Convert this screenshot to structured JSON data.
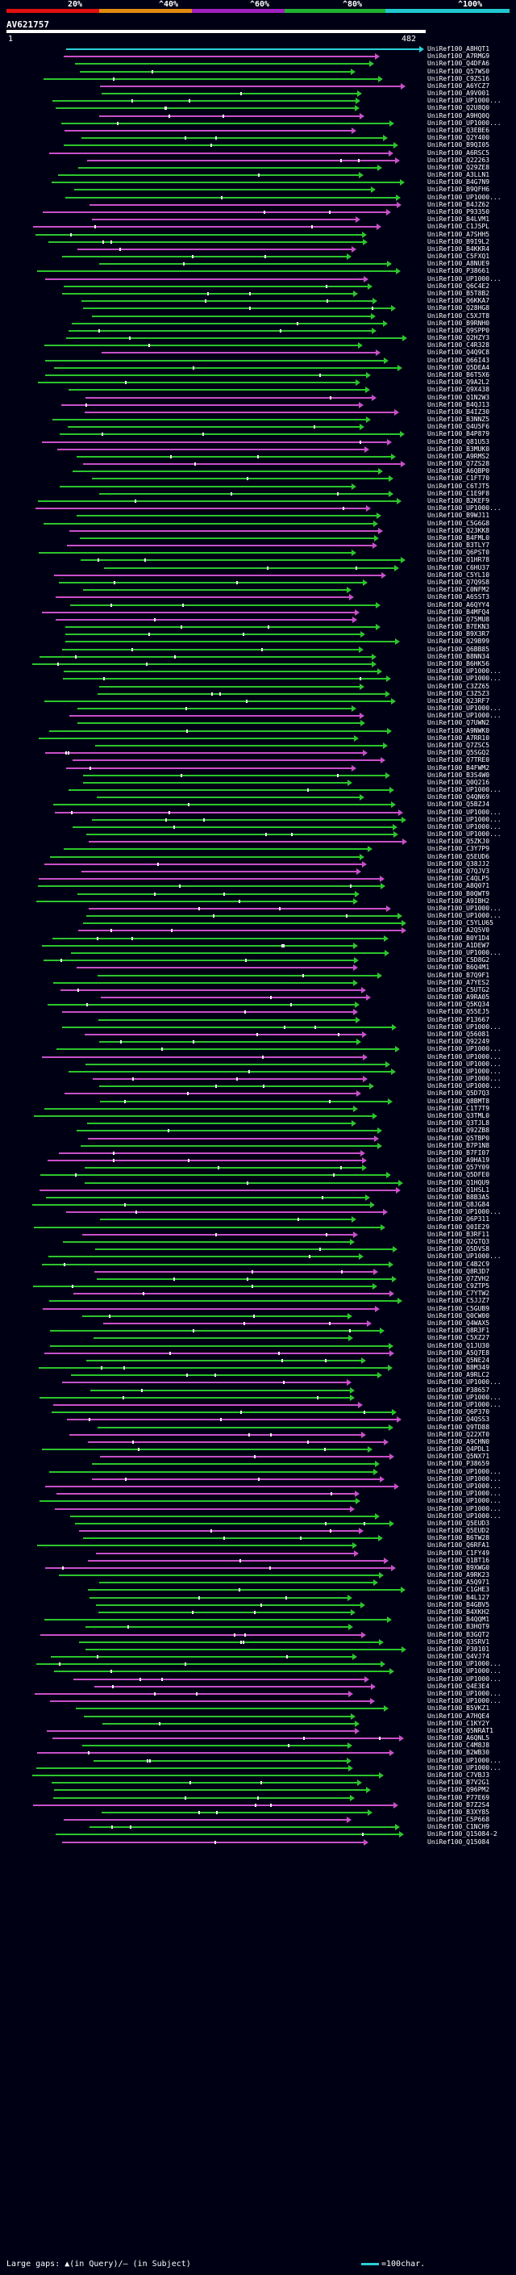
{
  "scale": {
    "labels": [
      "20%",
      "^40%",
      "^60%",
      "^80%",
      "^100%"
    ],
    "colors": [
      "#e01010",
      "#e08a10",
      "#a020c0",
      "#20b030",
      "#20c8d0"
    ]
  },
  "query": {
    "name": "AV621757",
    "start": "1",
    "end": "482"
  },
  "hit_colors": {
    "green": "#2cc52c",
    "magenta": "#c850c8",
    "cyan": "#2ad0d8"
  },
  "hits": [
    "UniRef100_A8HQT1",
    "UniRef100_A7RMG9",
    "UniRef100_Q4DFA6",
    "UniRef100_Q57WS0",
    "UniRef100_C9ZS16",
    "UniRef100_A6YCZ7",
    "UniRef100_A9V001",
    "UniRef100_UP1000...",
    "UniRef100_Q2U8Q0",
    "UniRef100_A9HQ0Q",
    "UniRef100_UP1000...",
    "UniRef100_Q3EBE6",
    "UniRef100_Q2Y400",
    "UniRef100_B9QI05",
    "UniRef100_A6RSC5",
    "UniRef100_Q22263",
    "UniRef100_Q29ZE8",
    "UniRef100_A3LLN1",
    "UniRef100_B4G7N9",
    "UniRef100_B9QFH6",
    "UniRef100_UP1000...",
    "UniRef100_B4JZ62",
    "UniRef100_P93350",
    "UniRef100_B4LVM1",
    "UniRef100_C1J5PL",
    "UniRef100_A7SHH5",
    "UniRef100_B9I9L2",
    "UniRef100_B4KKR4",
    "UniRef100_C5FXQ1",
    "UniRef100_A8NUE9",
    "UniRef100_P38661",
    "UniRef100_UP1000...",
    "UniRef100_Q6C4E2",
    "UniRef100_B5T8B2",
    "UniRef100_Q6KKA7",
    "UniRef100_Q28HG8",
    "UniRef100_C5XJT8",
    "UniRef100_B9RNH0",
    "UniRef100_Q9SPP0",
    "UniRef100_Q2HZY3",
    "UniRef100_C4R328",
    "UniRef100_Q4Q9C8",
    "UniRef100_Q66I43",
    "UniRef100_Q5DEA4",
    "UniRef100_B6T5X6",
    "UniRef100_Q9A2L2",
    "UniRef100_Q9X438",
    "UniRef100_Q1N2W3",
    "UniRef100_B4QJ13",
    "UniRef100_B4IZ30",
    "UniRef100_B3NNZ5",
    "UniRef100_Q4U5F6",
    "UniRef100_B4P879",
    "UniRef100_Q81U53",
    "UniRef100_B3MUK0",
    "UniRef100_A9RMS2",
    "UniRef100_Q7ZS28",
    "UniRef100_A6QBP0",
    "UniRef100_C1FT70",
    "UniRef100_C6TJT5",
    "UniRef100_C1E9F8",
    "UniRef100_B2KEF9",
    "UniRef100_UP1000...",
    "UniRef100_B9WJ11",
    "UniRef100_C5G6G8",
    "UniRef100_Q23KK8",
    "UniRef100_B4FML0",
    "UniRef100_B3TLY7",
    "UniRef100_Q6PST0",
    "UniRef100_Q1HR78",
    "UniRef100_C6HU37",
    "UniRef100_C5YL10",
    "UniRef100_Q7Q9S8",
    "UniRef100_C0NFM2",
    "UniRef100_A6SST3",
    "UniRef100_A6QYY4",
    "UniRef100_B4MFQ4",
    "UniRef100_Q75MU8",
    "UniRef100_B7EKN3",
    "UniRef100_B9X3R7",
    "UniRef100_Q29B99",
    "UniRef100_Q6BB85",
    "UniRef100_B8NN34",
    "UniRef100_B6HK56",
    "UniRef100_UP1000...",
    "UniRef100_UP1000...",
    "UniRef100_C3ZZ65",
    "UniRef100_C3Z5Z3",
    "UniRef100_Q23RF7",
    "UniRef100_UP1000...",
    "UniRef100_UP1000...",
    "UniRef100_Q7UWN2",
    "UniRef100_A9NWK0",
    "UniRef100_A7RR10",
    "UniRef100_Q7ZSC5",
    "UniRef100_Q5SGQ2",
    "UniRef100_Q7TRE0",
    "UniRef100_B4FWM2",
    "UniRef100_B3S4W0",
    "UniRef100_Q0Q216",
    "UniRef100_UP1000...",
    "UniRef100_Q4QN69",
    "UniRef100_Q5BZJ4",
    "UniRef100_UP1000...",
    "UniRef100_UP1000...",
    "UniRef100_UP1000...",
    "UniRef100_UP1000...",
    "UniRef100_Q5ZKJ0",
    "UniRef100_C3Y7P9",
    "UniRef100_Q5EUD6",
    "UniRef100_Q38JJ2",
    "UniRef100_Q7QJV3",
    "UniRef100_C4QLP5",
    "UniRef100_A8Q071",
    "UniRef100_B0QWT9",
    "UniRef100_A9IBH2",
    "UniRef100_UP1000...",
    "UniRef100_UP1000...",
    "UniRef100_C5YLU65",
    "UniRef100_A2Q5V0",
    "UniRef100_B0Y1D4",
    "UniRef100_A1DEW7",
    "UniRef100_UP1000...",
    "UniRef100_C5D8G2",
    "UniRef100_B6Q4M1",
    "UniRef100_B7Q9F1",
    "UniRef100_A7YES2",
    "UniRef100_C5UTG2",
    "UniRef100_A9RA05",
    "UniRef100_Q5KQ34",
    "UniRef100_Q55EJ5",
    "UniRef100_P13667",
    "UniRef100_UP1000...",
    "UniRef100_Q56081",
    "UniRef100_Q92249",
    "UniRef100_UP1000...",
    "UniRef100_UP1000...",
    "UniRef100_UP1000...",
    "UniRef100_UP1000...",
    "UniRef100_UP1000...",
    "UniRef100_UP1000...",
    "UniRef100_Q5D7Q3",
    "UniRef100_Q8BMT8",
    "UniRef100_C1T7T9",
    "UniRef100_Q3TML0",
    "UniRef100_Q3TJL8",
    "UniRef100_Q92ZB8",
    "UniRef100_Q5TBP0",
    "UniRef100_B7P1N8",
    "UniRef100_B7FI07",
    "UniRef100_A9HA19",
    "UniRef100_Q57Y09",
    "UniRef100_Q5DFE0",
    "UniRef100_Q1HQU9",
    "UniRef100_Q1HSL1",
    "UniRef100_B8B3A5",
    "UniRef100_Q8JG84",
    "UniRef100_UP1000...",
    "UniRef100_Q6P311",
    "UniRef100_Q0IE29",
    "UniRef100_B3RF11",
    "UniRef100_Q2GTQ3",
    "UniRef100_Q5DVS8",
    "UniRef100_UP1000...",
    "UniRef100_C4B2C9",
    "UniRef100_Q8R3D7",
    "UniRef100_Q7ZVH2",
    "UniRef100_C9ZTP5",
    "UniRef100_C7YTW2",
    "UniRef100_C5JJZ7",
    "UniRef100_C5GUB9",
    "UniRef100_Q0CW00",
    "UniRef100_Q4WAX5",
    "UniRef100_Q8R3F1",
    "UniRef100_C5XZ27",
    "UniRef100_Q1JU30",
    "UniRef100_A5Q7E8",
    "UniRef100_Q5NE24",
    "UniRef100_B8M349",
    "UniRef100_A9RLC2",
    "UniRef100_UP1000...",
    "UniRef100_P38657",
    "UniRef100_UP1000...",
    "UniRef100_UP1000...",
    "UniRef100_Q6P370",
    "UniRef100_Q4QSS3",
    "UniRef100_Q9TD88",
    "UniRef100_Q22XT0",
    "UniRef100_A9CHN0",
    "UniRef100_Q4PDL1",
    "UniRef100_Q5NX71",
    "UniRef100_P38659",
    "UniRef100_UP1000...",
    "UniRef100_UP1000...",
    "UniRef100_UP1000...",
    "UniRef100_UP1000...",
    "UniRef100_UP1000...",
    "UniRef100_UP1000...",
    "UniRef100_UP1000...",
    "UniRef100_Q5EUD3",
    "UniRef100_Q5EUD2",
    "UniRef100_B6TW28",
    "UniRef100_Q6RFA1",
    "UniRef100_C1FY49",
    "UniRef100_Q1BT16",
    "UniRef100_B9XWG0",
    "UniRef100_A9RK23",
    "UniRef100_A5Q971",
    "UniRef100_C1GHE3",
    "UniRef100_B4L127",
    "UniRef100_B4GBV5",
    "UniRef100_B4XKH2",
    "UniRef100_B4QQM1",
    "UniRef100_B3HQT9",
    "UniRef100_B3GQT2",
    "UniRef100_Q3SRV1",
    "UniRef100_P30101",
    "UniRef100_Q4VJ74",
    "UniRef100_UP1000...",
    "UniRef100_UP1000...",
    "UniRef100_UP1000...",
    "UniRef100_Q4E3E4",
    "UniRef100_UP1000...",
    "UniRef100_UP1000...",
    "UniRef100_B5VKZ1",
    "UniRef100_A7HQE4",
    "UniRef100_C1KY2Y",
    "UniRef100_Q5NRAT1",
    "UniRef100_A6QNL5",
    "UniRef100_C4M8J8",
    "UniRef100_B2WB30",
    "UniRef100_UP1000...",
    "UniRef100_UP1000...",
    "UniRef100_C7VBJ3",
    "UniRef100_B7V2G1",
    "UniRef100_Q96PM2",
    "UniRef100_P77E69",
    "UniRef100_B7Z2S4",
    "UniRef100_B3XY85",
    "UniRef100_C5P668",
    "UniRef100_C1NCH9",
    "UniRef100_Q15084-2",
    "UniRef100_Q15084"
  ],
  "footer": {
    "left": "Large gaps: ▲(in Query)/– (in Subject)",
    "right": "=100char."
  }
}
